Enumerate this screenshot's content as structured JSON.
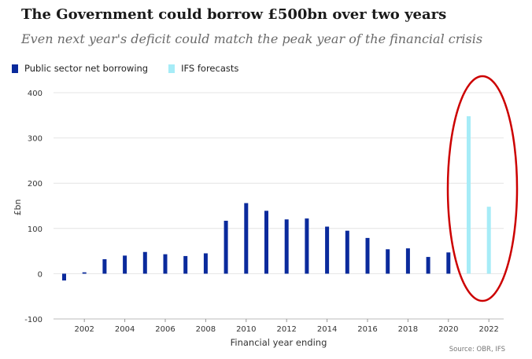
{
  "title": "The Government could borrow £500bn over two years",
  "subtitle": "Even next year's deficit could match the peak year of the financial crisis",
  "source": "Source: OBR, IFS",
  "colors": {
    "actual": "#0a2a9c",
    "forecast": "#a6ecf7",
    "grid": "#e4e4e4",
    "annotation": "#cc0000"
  },
  "chart_data": {
    "type": "bar",
    "xlabel": "Financial year ending",
    "ylabel": "£bn",
    "ylim": [
      -100,
      400
    ],
    "yticks": [
      -100,
      0,
      100,
      200,
      300,
      400
    ],
    "xticks": [
      2002,
      2004,
      2006,
      2008,
      2010,
      2012,
      2014,
      2016,
      2018,
      2020,
      2022
    ],
    "grid": true,
    "legend_position": "top-left",
    "annotation": "red ellipse circling the 2021 and 2022 forecast bars",
    "series": [
      {
        "name": "Public sector net borrowing",
        "x": [
          2001,
          2002,
          2003,
          2004,
          2005,
          2006,
          2007,
          2008,
          2009,
          2010,
          2011,
          2012,
          2013,
          2014,
          2015,
          2016,
          2017,
          2018,
          2019,
          2020
        ],
        "values": [
          -15,
          3,
          32,
          40,
          48,
          43,
          39,
          45,
          117,
          156,
          139,
          120,
          122,
          104,
          95,
          79,
          54,
          56,
          37,
          47
        ]
      },
      {
        "name": "IFS forecasts",
        "x": [
          2021,
          2022
        ],
        "values": [
          348,
          148
        ]
      }
    ]
  }
}
